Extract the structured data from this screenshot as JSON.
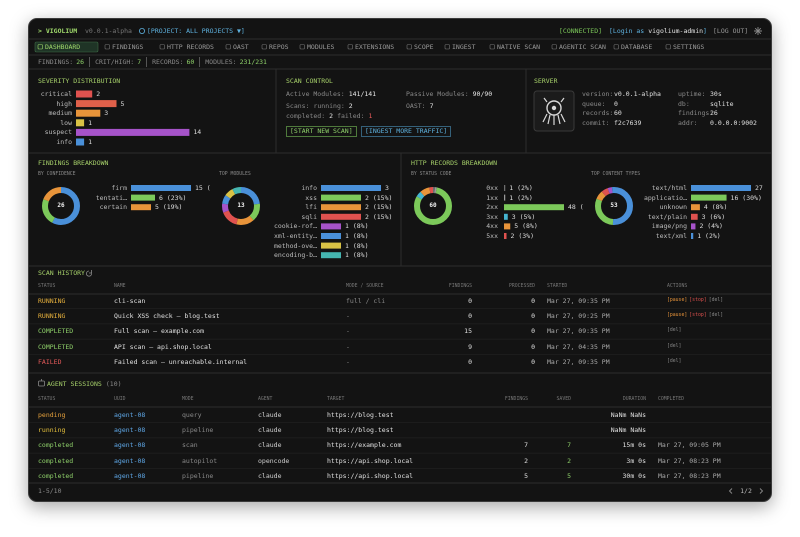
{
  "header": {
    "brand": "> VIGOLIUM",
    "version": "v0.0.1-alpha",
    "project": "[PROJECT: ALL PROJECTS ▼]",
    "status": "[CONNECTED]",
    "login": {
      "prefix": "[Login as",
      "user": "vigolium-admin",
      "suffix": "]"
    },
    "logout": "[LOG OUT]"
  },
  "nav": {
    "active": 0,
    "items": [
      "DASHBOARD",
      "FINDINGS",
      "HTTP RECORDS",
      "OAST",
      "REPOS",
      "MODULES",
      "EXTENSIONS",
      "SCOPE",
      "INGEST",
      "NATIVE SCAN",
      "AGENTIC SCAN",
      "DATABASE",
      "SETTINGS"
    ]
  },
  "stats": [
    {
      "label": "FINDINGS:",
      "value": 26
    },
    {
      "label": "CRIT/HIGH:",
      "value": 7
    },
    {
      "label": "RECORDS:",
      "value": 60
    },
    {
      "label": "MODULES:",
      "value": "231/231"
    }
  ],
  "severity": {
    "title": "SEVERITY DISTRIBUTION",
    "type": "bar",
    "categories": [
      "critical",
      "high",
      "medium",
      "low",
      "suspect",
      "info"
    ],
    "values": [
      2,
      5,
      3,
      1,
      14,
      1
    ],
    "colors": [
      "#e0524f",
      "#e0604a",
      "#e8943a",
      "#d9c245",
      "#a653c9",
      "#4a90d9"
    ]
  },
  "scan_control": {
    "title": "SCAN CONTROL",
    "active": {
      "label": "Active Modules:",
      "value": "141/141"
    },
    "passive": {
      "label": "Passive Modules:",
      "value": "90/90"
    },
    "scans": {
      "label": "Scans:",
      "items": [
        {
          "label": "running:",
          "value": 2,
          "color": "#e8e8e8"
        },
        {
          "label": "completed:",
          "value": 2,
          "color": "#e8e8e8"
        },
        {
          "label": "failed:",
          "value": 1,
          "color": "#e55a5a"
        }
      ]
    },
    "oast": {
      "label": "OAST:",
      "value": 7
    },
    "buttons": [
      "[START NEW SCAN]",
      "[INGEST MORE TRAFFIC]"
    ]
  },
  "server": {
    "title": "SERVER",
    "fields": [
      {
        "label": "version:",
        "value": "v0.0.1-alpha"
      },
      {
        "label": "queue:",
        "value": 0
      },
      {
        "label": "records:",
        "value": 60
      },
      {
        "label": "commit:",
        "value": "f2c7639"
      },
      {
        "label": "uptime:",
        "value": "30s"
      },
      {
        "label": "db:",
        "value": "sqlite"
      },
      {
        "label": "findings:",
        "value": 26
      },
      {
        "label": "addr:",
        "value": "0.0.0.0:9002"
      }
    ]
  },
  "findings_breakdown": {
    "title": "FINDINGS BREAKDOWN",
    "charts": [
      {
        "type": "donut-bar",
        "subtitle": "BY CONFIDENCE",
        "center_label": 26,
        "categories": [
          "firm",
          "tentati…",
          "certain"
        ],
        "values": [
          15,
          6,
          5
        ],
        "value_labels": [
          "15 (",
          "6 (23%)",
          "5 (19%)"
        ],
        "colors": [
          "#4a90d9",
          "#7cc95a",
          "#e8943a"
        ]
      },
      {
        "type": "donut-bar",
        "subtitle": "TOP MODULES",
        "center_label": 13,
        "categories": [
          "info",
          "xss",
          "lfi",
          "sqli",
          "cookie-rof…",
          "xml-entity…",
          "method-ove…",
          "encoding-b…"
        ],
        "values": [
          3,
          2,
          2,
          2,
          1,
          1,
          1,
          1
        ],
        "value_labels": [
          "3",
          "2 (15%)",
          "2 (15%)",
          "2 (15%)",
          "1 (8%)",
          "1 (8%)",
          "1 (8%)",
          "1 (8%)"
        ],
        "colors": [
          "#4a90d9",
          "#7cc95a",
          "#e8943a",
          "#e0524f",
          "#a653c9",
          "#4a90d9",
          "#d9c245",
          "#45b5b0"
        ]
      }
    ]
  },
  "http_breakdown": {
    "title": "HTTP RECORDS BREAKDOWN",
    "charts": [
      {
        "type": "donut-bar",
        "subtitle": "BY STATUS CODE",
        "center_label": 60,
        "categories": [
          "0xx",
          "1xx",
          "2xx",
          "3xx",
          "4xx",
          "5xx"
        ],
        "values": [
          1,
          1,
          48,
          3,
          5,
          2
        ],
        "value_labels": [
          "1 (2%)",
          "1 (2%)",
          "48 (",
          "3 (5%)",
          "5 (8%)",
          "2 (3%)"
        ],
        "colors": [
          "#6e6e6e",
          "#9a9a9a",
          "#7cc95a",
          "#45b5d0",
          "#e8943a",
          "#e0524f"
        ]
      },
      {
        "type": "donut-bar",
        "subtitle": "TOP CONTENT TYPES",
        "center_label": 53,
        "categories": [
          "text/html",
          "applicatio…",
          "unknown",
          "text/plain",
          "image/png",
          "text/xml"
        ],
        "values": [
          27,
          16,
          4,
          3,
          2,
          1
        ],
        "value_labels": [
          "27",
          "16 (30%)",
          "4 (8%)",
          "3 (6%)",
          "2 (4%)",
          "1 (2%)"
        ],
        "colors": [
          "#4a90d9",
          "#7cc95a",
          "#e8943a",
          "#e0524f",
          "#a653c9",
          "#4a90d9"
        ]
      }
    ]
  },
  "scan_history": {
    "title": "SCAN HISTORY",
    "columns": [
      "STATUS",
      "NAME",
      "MODE / SOURCE",
      "FINDINGS",
      "PROCESSED",
      "STARTED",
      "ACTIONS"
    ],
    "status_colors": {
      "RUNNING": "#e6b03c",
      "COMPLETED": "#8fd16a",
      "FAILED": "#e55a5a"
    },
    "action_colors": {
      "[pause]": "#e8943a",
      "[stop]": "#e0524f",
      "[del]": "#8a8a8a"
    },
    "rows": [
      [
        "RUNNING",
        "cli-scan",
        "full / cli",
        0,
        0,
        "Mar 27, 09:35 PM",
        [
          "[pause]",
          "[stop]",
          "[del]"
        ]
      ],
      [
        "RUNNING",
        "Quick XSS check — blog.test",
        "-",
        0,
        0,
        "Mar 27, 09:25 PM",
        [
          "[pause]",
          "[stop]",
          "[del]"
        ]
      ],
      [
        "COMPLETED",
        "Full scan — example.com",
        "-",
        15,
        0,
        "Mar 27, 09:35 PM",
        [
          "[del]"
        ]
      ],
      [
        "COMPLETED",
        "API scan — api.shop.local",
        "-",
        9,
        0,
        "Mar 27, 04:35 PM",
        [
          "[del]"
        ]
      ],
      [
        "FAILED",
        "Failed scan — unreachable.internal",
        "-",
        0,
        0,
        "Mar 27, 09:35 PM",
        [
          "[del]"
        ]
      ]
    ]
  },
  "agent_sessions": {
    "title": "AGENT SESSIONS",
    "count": "(10)",
    "columns": [
      "STATUS",
      "UUID",
      "MODE",
      "AGENT",
      "TARGET",
      "FINDINGS",
      "SAVED",
      "DURATION",
      "COMPLETED"
    ],
    "status_colors": {
      "pending": "#e6a13c",
      "running": "#e6c13c",
      "completed": "#8fd16a"
    },
    "rows": [
      [
        "pending",
        "agent-08",
        "query",
        "claude",
        "https://blog.test",
        null,
        null,
        "NaNm NaNs",
        null
      ],
      [
        "running",
        "agent-08",
        "pipeline",
        "claude",
        "https://blog.test",
        null,
        null,
        "NaNm NaNs",
        null
      ],
      [
        "completed",
        "agent-08",
        "scan",
        "claude",
        "https://example.com",
        7,
        7,
        "15m 0s",
        "Mar 27, 09:05 PM"
      ],
      [
        "completed",
        "agent-08",
        "autopilot",
        "opencode",
        "https://api.shop.local",
        2,
        2,
        "3m 0s",
        "Mar 27, 08:23 PM"
      ],
      [
        "completed",
        "agent-08",
        "pipeline",
        "claude",
        "https://api.shop.local",
        5,
        5,
        "30m 0s",
        "Mar 27, 08:23 PM"
      ]
    ],
    "pagination": {
      "range": "1-5/10",
      "page": "1/2"
    }
  }
}
